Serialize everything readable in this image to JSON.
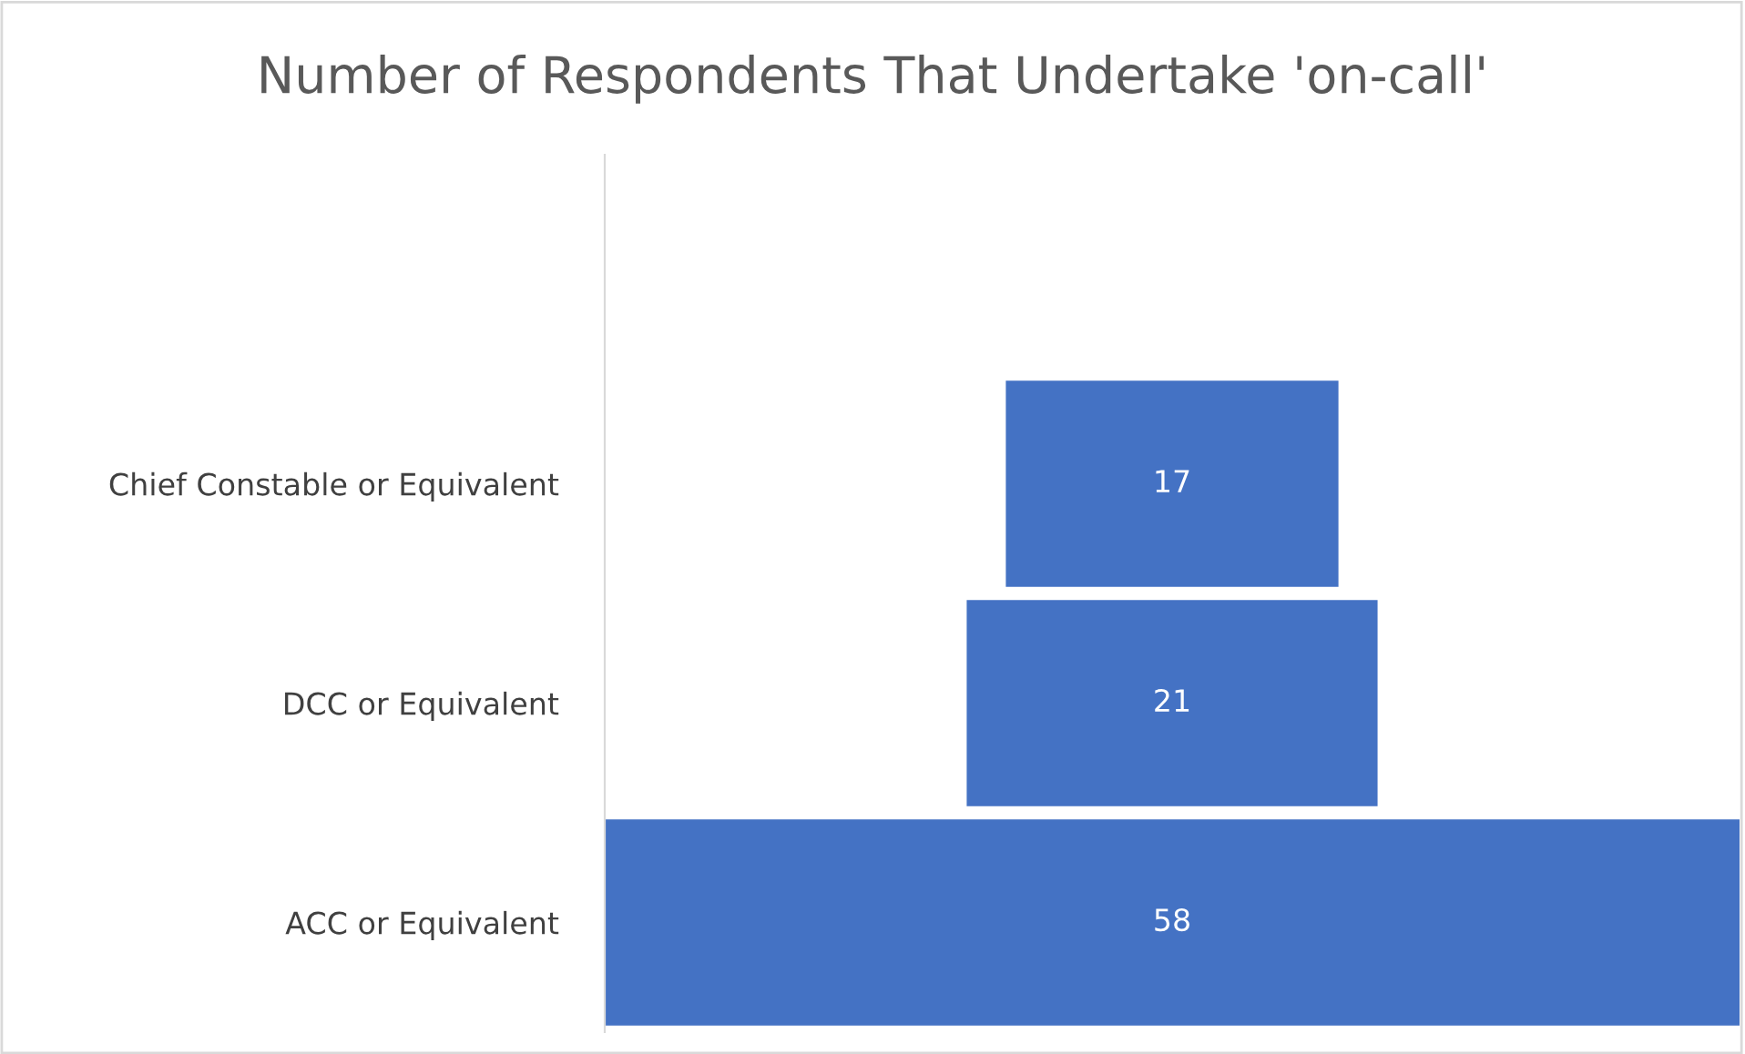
{
  "chart_data": {
    "type": "other",
    "title": "Number of Respondents That Undertake 'on-call'",
    "categories": [
      null,
      "Chief Constable or Equivalent",
      "DCC or Equivalent",
      "ACC or Equivalent"
    ],
    "values": [
      null,
      17,
      21,
      58
    ],
    "color": "#4472c4",
    "data_labels": true
  }
}
